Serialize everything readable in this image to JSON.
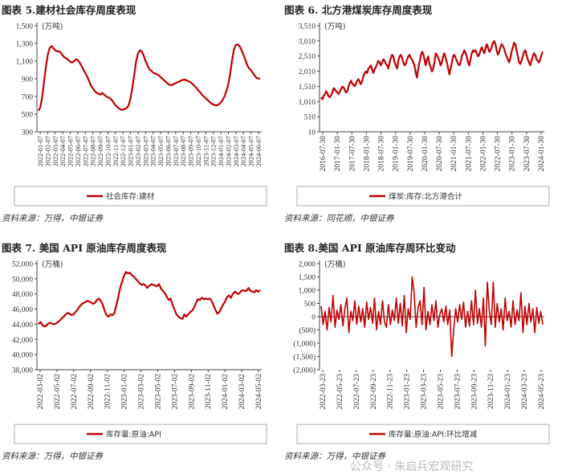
{
  "panels": [
    {
      "title": "图表 5.建材社会库存周度表现",
      "source": "资料来源：万得，中银证券"
    },
    {
      "title": "图表 6.  北方港煤炭库存周度表现",
      "source": "资料来源：同花顺，中银证券"
    },
    {
      "title": "图表 7.  美国 API 原油库存周度表现",
      "source": "资料来源：万得，中银证券"
    },
    {
      "title": "图表 8.美国 API 原油库存周环比变动",
      "source": "资料来源：万得，中银证券"
    }
  ],
  "watermark": "公众号 · 朱启兵宏观研究",
  "chart_data": [
    {
      "type": "line",
      "unit": "(万吨)",
      "ylim": [
        300,
        1500
      ],
      "yticks": [
        "300",
        "500",
        "700",
        "900",
        "1,100",
        "1,300",
        "1,500"
      ],
      "ytick_values": [
        300,
        500,
        700,
        900,
        1100,
        1300,
        1500
      ],
      "xticks": [
        "2022-01-07",
        "2022-02-07",
        "2022-03-07",
        "2022-04-07",
        "2022-05-07",
        "2022-06-07",
        "2022-07-07",
        "2022-08-07",
        "2022-09-07",
        "2022-10-07",
        "2022-11-07",
        "2022-12-07",
        "2023-01-07",
        "2023-02-07",
        "2023-03-07",
        "2023-04-07",
        "2023-05-07",
        "2023-06-07",
        "2023-07-07",
        "2023-08-07",
        "2023-09-07",
        "2023-10-07",
        "2023-11-07",
        "2023-12-07",
        "2024-01-07",
        "2024-02-07",
        "2024-03-07",
        "2024-04-07",
        "2024-05-07",
        "2024-06-07"
      ],
      "series": [
        {
          "name": "社会库存:建材",
          "color": "#c00000",
          "values": [
            540,
            580,
            700,
            880,
            1050,
            1180,
            1250,
            1270,
            1240,
            1220,
            1210,
            1210,
            1190,
            1160,
            1140,
            1130,
            1110,
            1090,
            1085,
            1100,
            1120,
            1110,
            1080,
            1040,
            1000,
            960,
            920,
            870,
            820,
            790,
            760,
            740,
            730,
            720,
            740,
            720,
            700,
            690,
            680,
            660,
            630,
            600,
            580,
            560,
            550,
            550,
            560,
            570,
            600,
            680,
            800,
            950,
            1100,
            1190,
            1220,
            1210,
            1160,
            1100,
            1050,
            1010,
            990,
            970,
            960,
            950,
            940,
            920,
            900,
            880,
            860,
            840,
            830,
            830,
            840,
            850,
            860,
            870,
            880,
            890,
            890,
            880,
            870,
            860,
            840,
            820,
            800,
            770,
            750,
            720,
            700,
            680,
            660,
            640,
            620,
            610,
            600,
            600,
            610,
            630,
            660,
            700,
            760,
            830,
            950,
            1100,
            1230,
            1280,
            1290,
            1270,
            1230,
            1180,
            1120,
            1060,
            1020,
            1000,
            970,
            940,
            910,
            905,
            900
          ]
        }
      ]
    },
    {
      "type": "line",
      "unit": "(万吨)",
      "ylim": [
        10,
        3510
      ],
      "yticks": [
        "10",
        "510",
        "1,010",
        "1,510",
        "2,010",
        "2,510",
        "3,010",
        "3,510"
      ],
      "ytick_values": [
        10,
        510,
        1010,
        1510,
        2010,
        2510,
        3010,
        3510
      ],
      "xticks": [
        "2016-07-30",
        "2017-01-30",
        "2017-07-30",
        "2018-01-30",
        "2018-07-30",
        "2019-01-30",
        "2019-07-30",
        "2020-01-30",
        "2020-07-30",
        "2021-01-30",
        "2021-07-30",
        "2022-01-30",
        "2022-07-30",
        "2023-01-30",
        "2023-07-30",
        "2024-01-30"
      ],
      "series": [
        {
          "name": "煤炭:库存:北方港合计",
          "color": "#c00000",
          "values": [
            1150,
            1080,
            1200,
            1250,
            1350,
            1280,
            1180,
            1150,
            1220,
            1300,
            1450,
            1420,
            1350,
            1300,
            1260,
            1330,
            1420,
            1500,
            1480,
            1380,
            1300,
            1350,
            1500,
            1620,
            1700,
            1600,
            1550,
            1520,
            1600,
            1700,
            1750,
            1650,
            1580,
            1700,
            1850,
            1950,
            2000,
            1950,
            2100,
            2150,
            2200,
            2050,
            1950,
            2080,
            2150,
            2250,
            2350,
            2300,
            2200,
            2300,
            2400,
            2350,
            2250,
            2200,
            2100,
            2300,
            2450,
            2550,
            2500,
            2300,
            2200,
            2100,
            2350,
            2500,
            2550,
            2450,
            2300,
            2200,
            2250,
            2400,
            2500,
            2550,
            2450,
            2400,
            2300,
            2200,
            1950,
            1800,
            2100,
            2300,
            2500,
            2650,
            2600,
            2400,
            2200,
            2400,
            2500,
            2250,
            2150,
            2000,
            2100,
            2300,
            2600,
            2550,
            2450,
            2350,
            2200,
            2300,
            2500,
            2600,
            2450,
            2300,
            2100,
            1900,
            2100,
            2300,
            2500,
            2550,
            2450,
            2350,
            2250,
            2200,
            2300,
            2500,
            2600,
            2700,
            2600,
            2500,
            2300,
            2200,
            2400,
            2600,
            2700,
            2650,
            2700,
            2600,
            2500,
            2550,
            2700,
            2800,
            2700,
            2600,
            2750,
            2900,
            2800,
            2650,
            2700,
            2800,
            2950,
            3000,
            2900,
            2700,
            2550,
            2650,
            2800,
            2900,
            2850,
            2750,
            2600,
            2500,
            2400,
            2300,
            2450,
            2650,
            2800,
            2950,
            2900,
            2700,
            2500,
            2300,
            2250,
            2350,
            2500,
            2650,
            2700,
            2550,
            2400,
            2300,
            2200,
            2350,
            2500,
            2600,
            2550,
            2400,
            2350,
            2300,
            2400,
            2550,
            2650
          ]
        }
      ]
    },
    {
      "type": "line",
      "unit": "(万桶)",
      "ylim": [
        38000,
        52000
      ],
      "yticks": [
        "38,000",
        "40,000",
        "42,000",
        "44,000",
        "46,000",
        "48,000",
        "50,000",
        "52,000"
      ],
      "ytick_values": [
        38000,
        40000,
        42000,
        44000,
        46000,
        48000,
        50000,
        52000
      ],
      "xticks": [
        "2022-03-02",
        "2022-05-02",
        "2022-07-02",
        "2022-09-02",
        "2022-11-02",
        "2023-01-02",
        "2023-03-02",
        "2023-05-02",
        "2023-07-02",
        "2023-09-02",
        "2023-11-02",
        "2024-01-02",
        "2024-03-02",
        "2024-05-02"
      ],
      "series": [
        {
          "name": "库存量:原油:API",
          "color": "#c00000",
          "values": [
            44000,
            44300,
            43900,
            43700,
            43800,
            44100,
            44200,
            44050,
            44000,
            44100,
            44300,
            44500,
            44800,
            45000,
            45300,
            45500,
            45400,
            45200,
            45300,
            45600,
            45900,
            46300,
            46600,
            46800,
            46900,
            47100,
            47000,
            46900,
            46700,
            46800,
            47200,
            47400,
            47100,
            46600,
            45800,
            45200,
            45000,
            45300,
            45200,
            45400,
            46500,
            47600,
            48800,
            49600,
            50400,
            50900,
            50700,
            50800,
            50500,
            50300,
            50000,
            49700,
            49400,
            49200,
            49300,
            49100,
            48800,
            49100,
            49300,
            49200,
            49100,
            49000,
            49300,
            48700,
            48400,
            48100,
            47600,
            47200,
            47400,
            46500,
            45900,
            45300,
            45000,
            44800,
            44700,
            45300,
            45000,
            45300,
            45600,
            45800,
            46200,
            46800,
            47300,
            47200,
            47500,
            47300,
            47400,
            47300,
            47400,
            47100,
            46500,
            45900,
            45400,
            45600,
            46100,
            46600,
            47000,
            47600,
            47800,
            47500,
            48000,
            48300,
            48100,
            48000,
            48300,
            48500,
            48400,
            48400,
            48800,
            48400,
            48300,
            48200,
            48500,
            48300,
            48500
          ]
        }
      ]
    },
    {
      "type": "bar",
      "unit": "(万桶)",
      "ylim": [
        -2000,
        2000
      ],
      "yticks": [
        "2,000",
        "1,500",
        "1,000",
        "500",
        "0",
        "(500)",
        "(1,000)",
        "(1,500)",
        "(2,000)"
      ],
      "ytick_values": [
        2000,
        1500,
        1000,
        500,
        0,
        -500,
        -1000,
        -1500,
        -2000
      ],
      "xticks": [
        "2022-03-23",
        "2022-05-23",
        "2022-07-23",
        "2022-09-23",
        "2022-11-23",
        "2023-01-23",
        "2023-03-23",
        "2023-05-23",
        "2023-07-23",
        "2023-09-23",
        "2023-11-23",
        "2024-01-23",
        "2024-03-23",
        "2024-05-23"
      ],
      "series": [
        {
          "name": "库存量:原油:API:环比增减",
          "color": "#c00000",
          "values": [
            400,
            -300,
            200,
            -500,
            350,
            -200,
            800,
            -400,
            250,
            -100,
            450,
            -350,
            300,
            700,
            -600,
            200,
            -150,
            600,
            -300,
            400,
            -200,
            300,
            -400,
            550,
            -100,
            350,
            -250,
            700,
            -500,
            200,
            -300,
            600,
            -200,
            -400,
            450,
            -300,
            250,
            -150,
            700,
            -250,
            500,
            -350,
            800,
            -600,
            300,
            -100,
            1500,
            900,
            -400,
            350,
            600,
            -300,
            1100,
            -500,
            200,
            -300,
            450,
            -150,
            600,
            -400,
            100,
            300,
            -200,
            400,
            -300,
            250,
            -1500,
            -500,
            300,
            -200,
            450,
            -100,
            550,
            -400,
            200,
            -350,
            600,
            -300,
            1000,
            -250,
            300,
            -400,
            700,
            -1100,
            1300,
            200,
            -300,
            1300,
            -400,
            500,
            -200,
            300,
            -500,
            700,
            -150,
            200,
            -400,
            600,
            -300,
            250,
            -150,
            900,
            -600,
            400,
            -300,
            500,
            -200,
            300,
            -600,
            350,
            -250,
            200,
            -300
          ]
        }
      ]
    }
  ],
  "legends": [
    "社会库存:建材",
    "煤炭:库存:北方港合计",
    "库存量:原油:API",
    "库存量:原油:API:环比增减"
  ]
}
